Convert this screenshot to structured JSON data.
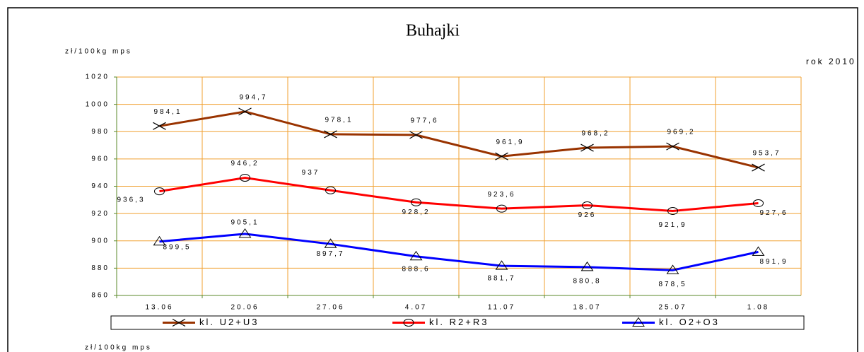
{
  "chart_data": {
    "type": "line",
    "title": "Buhajki",
    "y_axis_label": "zł/100kg mps",
    "note": "rok 2010",
    "footer_text": "zł/100kg mps",
    "categories": [
      "13.06",
      "20.06",
      "27.06",
      "4.07",
      "11.07",
      "18.07",
      "25.07",
      "1.08"
    ],
    "series": [
      {
        "name": "kl. U2+U3",
        "color": "#993300",
        "marker": "x",
        "values": [
          984.1,
          994.7,
          978.1,
          977.6,
          961.9,
          968.2,
          969.2,
          953.7
        ],
        "value_labels": [
          "984,1",
          "994,7",
          "978,1",
          "977,6",
          "961,9",
          "968,2",
          "969,2",
          "953,7"
        ]
      },
      {
        "name": "kl. R2+R3",
        "color": "#ff0000",
        "marker": "circle",
        "values": [
          936.3,
          946.2,
          937,
          928.2,
          923.6,
          926,
          921.9,
          927.6
        ],
        "value_labels": [
          "936,3",
          "946,2",
          "937",
          "928,2",
          "923,6",
          "926",
          "921,9",
          "927,6"
        ]
      },
      {
        "name": "kl. O2+O3",
        "color": "#0000ff",
        "marker": "triangle",
        "values": [
          899.5,
          905.1,
          897.7,
          888.6,
          881.7,
          880.8,
          878.5,
          891.9
        ],
        "value_labels": [
          "899,5",
          "905,1",
          "897,7",
          "888,6",
          "881,7",
          "880,8",
          "878,5",
          "891,9"
        ]
      }
    ],
    "ylim": [
      860,
      1020
    ],
    "yticks": [
      860,
      880,
      900,
      920,
      940,
      960,
      980,
      1000,
      1020
    ],
    "grid": true
  }
}
